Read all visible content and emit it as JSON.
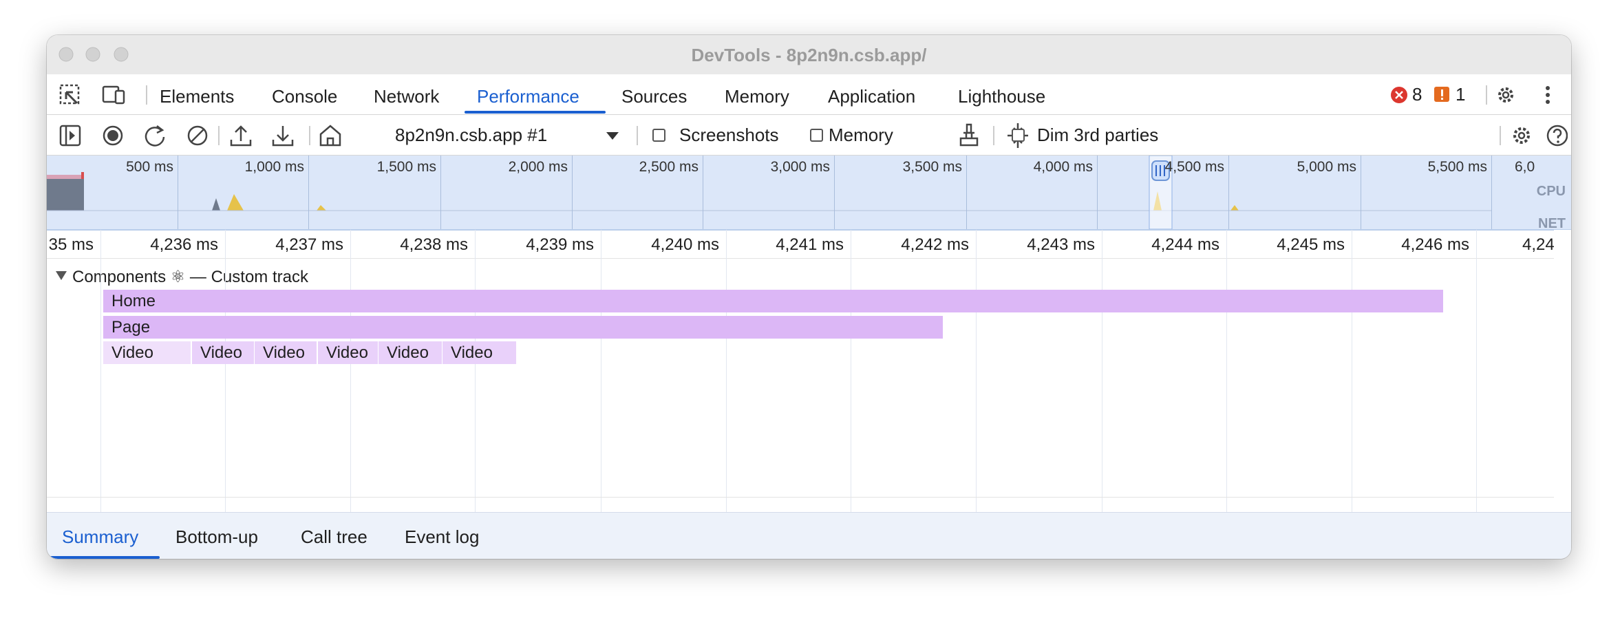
{
  "window": {
    "title": "DevTools - 8p2n9n.csb.app/"
  },
  "tabs": [
    "Elements",
    "Console",
    "Network",
    "Performance",
    "Sources",
    "Memory",
    "Application",
    "Lighthouse"
  ],
  "status": {
    "errors": "8",
    "warnings": "1"
  },
  "toolbar": {
    "recording": "8p2n9n.csb.app #1",
    "checkboxes": [
      "Screenshots",
      "Memory",
      "Dim 3rd parties"
    ]
  },
  "overview": {
    "labels": [
      "500 ms",
      "1,000 ms",
      "1,500 ms",
      "2,000 ms",
      "2,500 ms",
      "3,000 ms",
      "3,500 ms",
      "4,000 ms",
      "4,500 ms",
      "5,000 ms",
      "5,500 ms",
      "6,0"
    ],
    "cpu": "CPU",
    "net": "NET"
  },
  "ruler": {
    "labels": [
      "35 ms",
      "4,236 ms",
      "4,237 ms",
      "4,238 ms",
      "4,239 ms",
      "4,240 ms",
      "4,241 ms",
      "4,242 ms",
      "4,243 ms",
      "4,244 ms",
      "4,245 ms",
      "4,246 ms",
      "4,24"
    ]
  },
  "track": {
    "title": "Components ⚛ — Custom track",
    "rows": [
      [
        "Home"
      ],
      [
        "Page"
      ],
      [
        "Video",
        "Video",
        "Video",
        "Video",
        "Video",
        "Video"
      ]
    ]
  },
  "bottom_tabs": [
    "Summary",
    "Bottom-up",
    "Call tree",
    "Event log"
  ]
}
